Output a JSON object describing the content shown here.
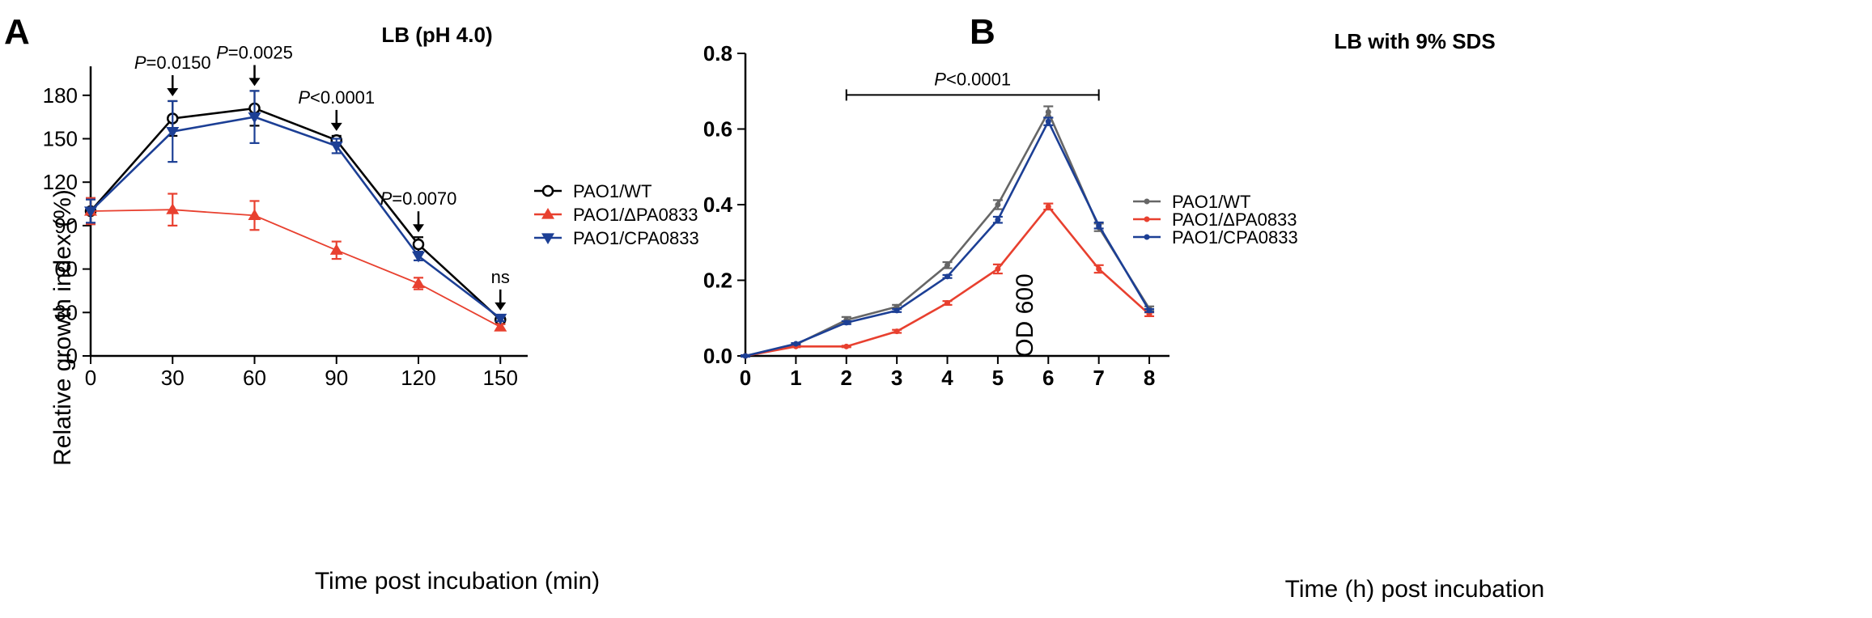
{
  "chart_data": [
    {
      "panel_label": "A",
      "type": "line",
      "title": "LB (pH 4.0)",
      "xlabel": "Time post incubation (min)",
      "ylabel": "Relative growth index (%)",
      "xlim": [
        0,
        160
      ],
      "ylim": [
        0,
        200
      ],
      "xticks": [
        "0",
        "30",
        "60",
        "90",
        "120",
        "150"
      ],
      "yticks": [
        "0",
        "30",
        "60",
        "90",
        "120",
        "150",
        "180"
      ],
      "x": [
        0,
        30,
        60,
        90,
        120,
        150
      ],
      "series": [
        {
          "name": "PAO1/WT",
          "color": "#000000",
          "marker": "open-circle",
          "values": [
            100,
            164,
            171,
            149,
            77,
            25
          ],
          "errors": [
            9,
            12,
            12,
            3,
            5,
            3
          ]
        },
        {
          "name": "PAO1/ΔPA0833",
          "color": "#e8402f",
          "marker": "triangle-up",
          "values": [
            100,
            101,
            97,
            73,
            50,
            20
          ],
          "errors": [
            9,
            11,
            10,
            6,
            4,
            2
          ]
        },
        {
          "name": "PAO1/CPA0833",
          "color": "#1c3f95",
          "marker": "triangle-down",
          "values": [
            100,
            155,
            165,
            145,
            69,
            26
          ],
          "errors": [
            8,
            21,
            18,
            5,
            3,
            2
          ]
        }
      ],
      "annotations": [
        {
          "x": 30,
          "label_prefix": "P",
          "label": "=0.0150"
        },
        {
          "x": 60,
          "label_prefix": "P",
          "label": "=0.0025"
        },
        {
          "x": 90,
          "label_prefix": "P",
          "label": "<0.0001"
        },
        {
          "x": 120,
          "label_prefix": "P",
          "label": "=0.0070"
        },
        {
          "x": 150,
          "label_prefix": "",
          "label": "ns"
        }
      ],
      "legend_position": "right"
    },
    {
      "panel_label": "B",
      "type": "line",
      "title": "LB with 9% SDS",
      "xlabel": "Time (h) post incubation",
      "ylabel": "OD 600",
      "xlim": [
        0,
        8.4
      ],
      "ylim": [
        0,
        0.8
      ],
      "xticks": [
        "0",
        "1",
        "2",
        "3",
        "4",
        "5",
        "6",
        "7",
        "8"
      ],
      "yticks": [
        "0.0",
        "0.2",
        "0.4",
        "0.6",
        "0.8"
      ],
      "x": [
        0,
        1,
        2,
        3,
        4,
        5,
        6,
        7,
        8
      ],
      "series": [
        {
          "name": "PAO1/WT",
          "color": "#666666",
          "marker": "dot",
          "values": [
            0.0,
            0.03,
            0.095,
            0.13,
            0.24,
            0.4,
            0.645,
            0.34,
            0.125
          ],
          "errors": [
            0.002,
            0.003,
            0.008,
            0.005,
            0.008,
            0.012,
            0.015,
            0.01,
            0.006
          ]
        },
        {
          "name": "PAO1/ΔPA0833",
          "color": "#e8402f",
          "marker": "dot",
          "values": [
            0.0,
            0.025,
            0.025,
            0.065,
            0.14,
            0.23,
            0.395,
            0.23,
            0.11
          ],
          "errors": [
            0.002,
            0.002,
            0.002,
            0.004,
            0.005,
            0.012,
            0.008,
            0.01,
            0.005
          ]
        },
        {
          "name": "PAO1/CPA0833",
          "color": "#1c3f95",
          "marker": "dot",
          "values": [
            0.0,
            0.032,
            0.088,
            0.12,
            0.21,
            0.36,
            0.62,
            0.345,
            0.12
          ],
          "errors": [
            0.002,
            0.002,
            0.004,
            0.004,
            0.004,
            0.008,
            0.01,
            0.008,
            0.004
          ]
        }
      ],
      "bracket": {
        "x_start": 2,
        "x_end": 7,
        "y": 0.69,
        "label_prefix": "P",
        "label": "<0.0001"
      },
      "legend_position": "right"
    }
  ]
}
